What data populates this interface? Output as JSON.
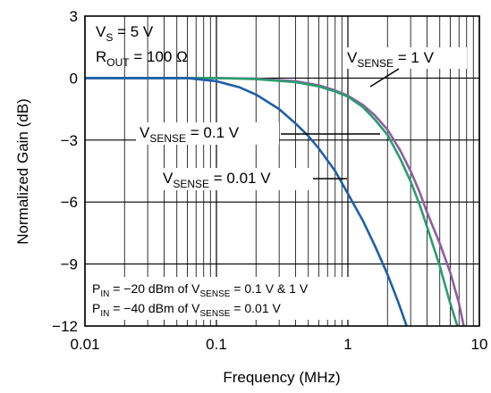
{
  "chart_data": {
    "type": "line",
    "xlabel": "Frequency (MHz)",
    "ylabel": "Normalized Gain (dB)",
    "x_scale": "log",
    "xlim": [
      0.01,
      10
    ],
    "ylim": [
      -12,
      3
    ],
    "x_ticks": [
      0.01,
      0.1,
      1,
      10
    ],
    "x_tick_labels": [
      "0.01",
      "0.1",
      "1",
      "10"
    ],
    "y_ticks": [
      3,
      0,
      -3,
      -6,
      -9,
      -12
    ],
    "y_tick_labels": [
      "3",
      "0",
      "−3",
      "−6",
      "−9",
      "−12"
    ],
    "grid": true,
    "series": [
      {
        "name": "VSENSE = 1 V",
        "color": "#8e5ea2",
        "x": [
          0.01,
          0.1,
          0.2,
          0.4,
          0.6,
          0.8,
          1.0,
          1.3,
          1.6,
          2.0,
          2.5,
          3.0,
          3.5,
          4.0,
          5.0,
          6.0,
          7.0,
          7.6,
          8.0
        ],
        "y": [
          0,
          0,
          -0.03,
          -0.15,
          -0.35,
          -0.6,
          -0.85,
          -1.3,
          -1.8,
          -2.5,
          -3.5,
          -4.5,
          -5.5,
          -6.5,
          -8.0,
          -9.4,
          -10.9,
          -12.0,
          -12.6
        ]
      },
      {
        "name": "VSENSE = 0.1 V",
        "color": "#2a9d6e",
        "x": [
          0.01,
          0.1,
          0.2,
          0.4,
          0.6,
          0.8,
          1.0,
          1.3,
          1.6,
          2.0,
          2.5,
          3.0,
          3.5,
          4.0,
          5.0,
          6.0,
          6.8
        ],
        "y": [
          0,
          0,
          -0.05,
          -0.2,
          -0.4,
          -0.65,
          -0.9,
          -1.4,
          -2.0,
          -2.75,
          -3.9,
          -5.0,
          -6.1,
          -7.2,
          -9.1,
          -10.9,
          -12.0
        ]
      },
      {
        "name": "VSENSE = 0.01 V",
        "color": "#1f5fa8",
        "x": [
          0.01,
          0.06,
          0.1,
          0.15,
          0.2,
          0.3,
          0.4,
          0.5,
          0.6,
          0.8,
          1.0,
          1.3,
          1.6,
          2.0,
          2.4,
          2.8
        ],
        "y": [
          0,
          0,
          -0.15,
          -0.45,
          -0.8,
          -1.5,
          -2.2,
          -2.8,
          -3.4,
          -4.5,
          -5.6,
          -6.9,
          -8.1,
          -9.5,
          -10.8,
          -12.0
        ]
      }
    ],
    "annotations": {
      "vs": {
        "main": "V",
        "sub": "S",
        "rest": " = 5 V"
      },
      "rout": {
        "main": "R",
        "sub": "OUT",
        "rest": " = 100 Ω"
      },
      "vsense1": {
        "main": "V",
        "sub": "SENSE",
        "rest": " = 1 V"
      },
      "vsense01": {
        "main": "V",
        "sub": "SENSE",
        "rest": " = 0.1 V"
      },
      "vsense001": {
        "main": "V",
        "sub": "SENSE",
        "rest": " = 0.01 V"
      },
      "pin1": {
        "p": "P",
        "psub": "IN",
        "mid": " = −20 dBm of V",
        "vsub": "SENSE",
        "rest": " = 0.1 V & 1 V"
      },
      "pin2": {
        "p": "P",
        "psub": "IN",
        "mid": " = −40 dBm of V",
        "vsub": "SENSE",
        "rest": " = 0.01 V"
      }
    }
  }
}
